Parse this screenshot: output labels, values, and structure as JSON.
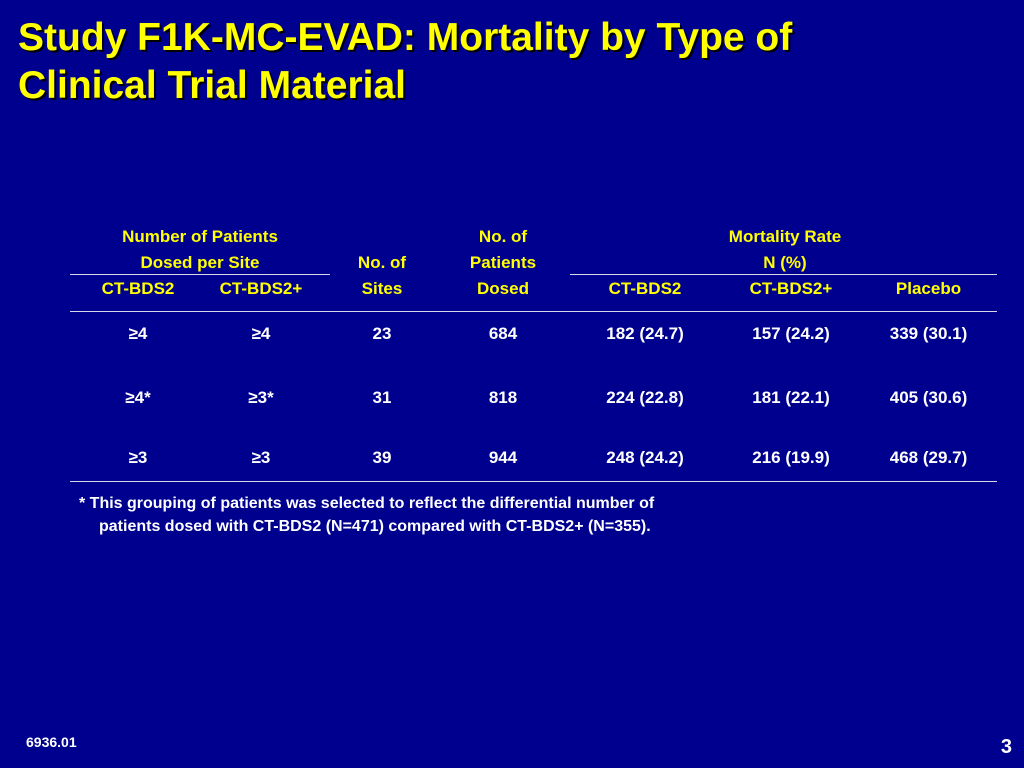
{
  "title": {
    "line1": "Study F1K-MC-EVAD: Mortality by Type of",
    "line2": "Clinical Trial Material"
  },
  "table": {
    "headers": {
      "patients_per_site_line1": "Number of Patients",
      "patients_per_site_line2": "Dosed per Site",
      "ct_bds2": "CT-BDS2",
      "ct_bds2_plus": "CT-BDS2+",
      "sites_line1": "No. of",
      "sites_line2": "Sites",
      "dosed_line1": "No. of",
      "dosed_line2": "Patients",
      "dosed_line3": "Dosed",
      "mortality_line1": "Mortality Rate",
      "mortality_line2": "N  (%)",
      "mort_ct_bds2": "CT-BDS2",
      "mort_ct_bds2_plus": "CT-BDS2+",
      "mort_placebo": "Placebo"
    },
    "rows": [
      {
        "ct_bds2": "≥4",
        "ct_bds2_plus": "≥4",
        "sites": "23",
        "dosed": "684",
        "mort_ct_bds2": "182  (24.7)",
        "mort_ct_bds2_plus": "157  (24.2)",
        "mort_placebo": "339  (30.1)"
      },
      {
        "ct_bds2": "≥4*",
        "ct_bds2_plus": "≥3*",
        "sites": "31",
        "dosed": "818",
        "mort_ct_bds2": "224  (22.8)",
        "mort_ct_bds2_plus": "181  (22.1)",
        "mort_placebo": "405  (30.6)"
      },
      {
        "ct_bds2": "≥3",
        "ct_bds2_plus": "≥3",
        "sites": "39",
        "dosed": "944",
        "mort_ct_bds2": "248  (24.2)",
        "mort_ct_bds2_plus": "216  (19.9)",
        "mort_placebo": "468  (29.7)"
      }
    ]
  },
  "footnote": {
    "line1": "*  This grouping of patients was selected to reflect the differential number of",
    "line2": "patients dosed with CT-BDS2 (N=471) compared with CT-BDS2+ (N=355)."
  },
  "footer": {
    "code": "6936.01",
    "page_number": "3"
  },
  "colors": {
    "background": "#00008f",
    "title": "#ffff00",
    "header_text": "#ffff00",
    "body_text": "#ffffff"
  }
}
